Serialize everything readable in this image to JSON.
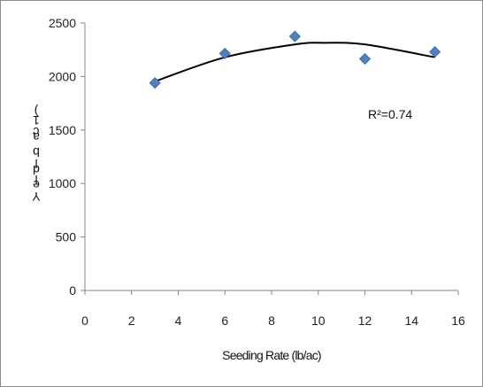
{
  "chart_data": {
    "type": "scatter",
    "xlabel": "Seeding Rate (lb/ac)",
    "ylabel": "Yield (lb/ac)",
    "xlim": [
      0,
      16
    ],
    "ylim": [
      0,
      2500
    ],
    "xticks": [
      "0",
      "2",
      "4",
      "6",
      "8",
      "10",
      "12",
      "14",
      "16"
    ],
    "yticks": [
      "0",
      "500",
      "1000",
      "1500",
      "2000",
      "2500"
    ],
    "series": [
      {
        "x": [
          3,
          6,
          9,
          12,
          15
        ],
        "y": [
          1940,
          2215,
          2375,
          2165,
          2230
        ]
      }
    ],
    "trendline": {
      "type": "polynomial",
      "x_range": [
        3,
        15
      ],
      "points": [
        [
          3,
          1955
        ],
        [
          6,
          2180
        ],
        [
          9,
          2300
        ],
        [
          10.3,
          2315
        ],
        [
          12,
          2300
        ],
        [
          15,
          2180
        ]
      ]
    },
    "annotation": "R² = 0.74",
    "grid": false,
    "legend": "none",
    "colors": {
      "marker": "#4f81bd",
      "marker_edge": "#3a6596",
      "trend": "#000000",
      "axis": "#868686"
    }
  }
}
